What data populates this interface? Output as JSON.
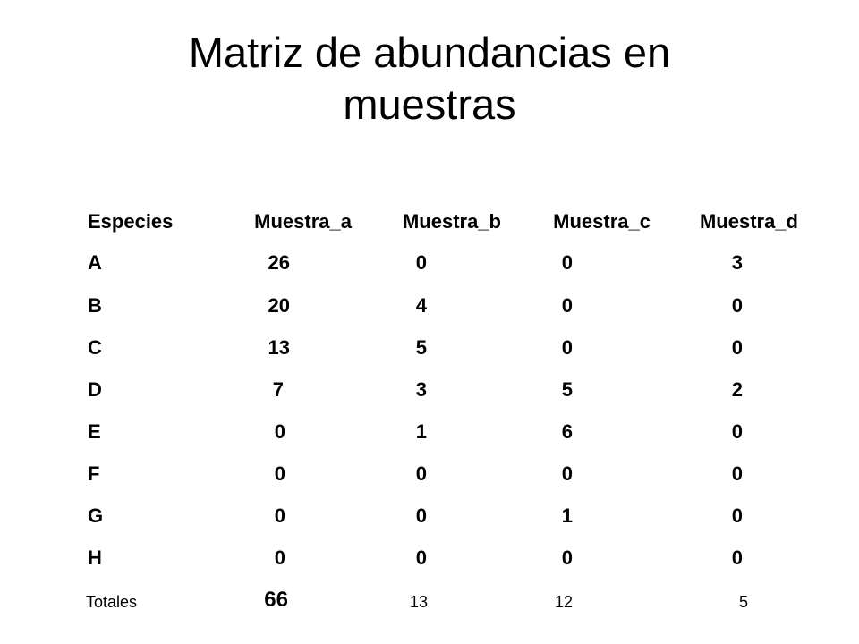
{
  "title_lines": [
    "Matriz de abundancias en",
    "muestras"
  ],
  "table": {
    "headers": [
      "Especies",
      "Muestra_a",
      "Muestra_b",
      "Muestra_c",
      "Muestra_d"
    ],
    "rows": [
      [
        "A",
        "26",
        "0",
        "0",
        "3"
      ],
      [
        "B",
        "20",
        "4",
        "0",
        "0"
      ],
      [
        "C",
        "13",
        "5",
        "0",
        "0"
      ],
      [
        "D",
        "7",
        "3",
        "5",
        "2"
      ],
      [
        "E",
        "0",
        "1",
        "6",
        "0"
      ],
      [
        "F",
        "0",
        "0",
        "0",
        "0"
      ],
      [
        "G",
        "0",
        "0",
        "1",
        "0"
      ],
      [
        "H",
        "0",
        "0",
        "0",
        "0"
      ]
    ],
    "totals_label": "Totales",
    "totals": [
      "66",
      "13",
      "12",
      "5"
    ]
  }
}
